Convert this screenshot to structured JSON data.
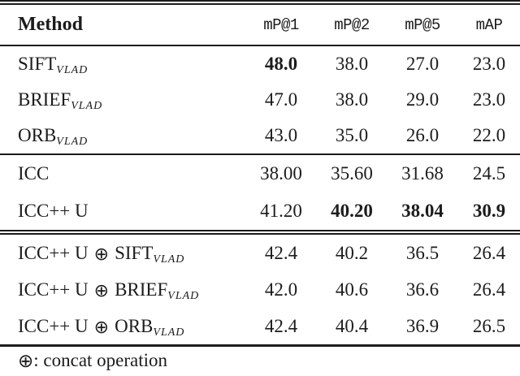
{
  "colors": {
    "background": "#ffffff",
    "text": "#1c1c1c",
    "rule": "#1c1c1c"
  },
  "symbols": {
    "oplus": "⊕"
  },
  "table": {
    "headers": {
      "method": "Method",
      "c1": "mP@1",
      "c2": "mP@2",
      "c3": "mP@5",
      "c4": "mAP"
    },
    "rows": [
      {
        "base": "SIFT",
        "sub": "VLAD",
        "v1": "48.0",
        "v2": "38.0",
        "v3": "27.0",
        "v4": "23.0"
      },
      {
        "base": "BRIEF",
        "sub": "VLAD",
        "v1": "47.0",
        "v2": "38.0",
        "v3": "29.0",
        "v4": "23.0"
      },
      {
        "base": "ORB",
        "sub": "VLAD",
        "v1": "43.0",
        "v2": "35.0",
        "v3": "26.0",
        "v4": "22.0"
      },
      {
        "base": "ICC",
        "v1": "38.00",
        "v2": "35.60",
        "v3": "31.68",
        "v4": "24.5"
      },
      {
        "base": "ICC++ U",
        "v1": "41.20",
        "v2": "40.20",
        "v3": "38.04",
        "v4": "30.9"
      },
      {
        "pre": "ICC++ U",
        "base": "SIFT",
        "sub": "VLAD",
        "v1": "42.4",
        "v2": "40.2",
        "v3": "36.5",
        "v4": "26.4"
      },
      {
        "pre": "ICC++ U",
        "base": "BRIEF",
        "sub": "VLAD",
        "v1": "42.0",
        "v2": "40.6",
        "v3": "36.6",
        "v4": "26.4"
      },
      {
        "pre": "ICC++ U",
        "base": "ORB",
        "sub": "VLAD",
        "v1": "42.4",
        "v2": "40.4",
        "v3": "36.9",
        "v4": "26.5"
      }
    ]
  },
  "footnote": {
    "symbol": "⊕",
    "text": ": concat operation"
  }
}
